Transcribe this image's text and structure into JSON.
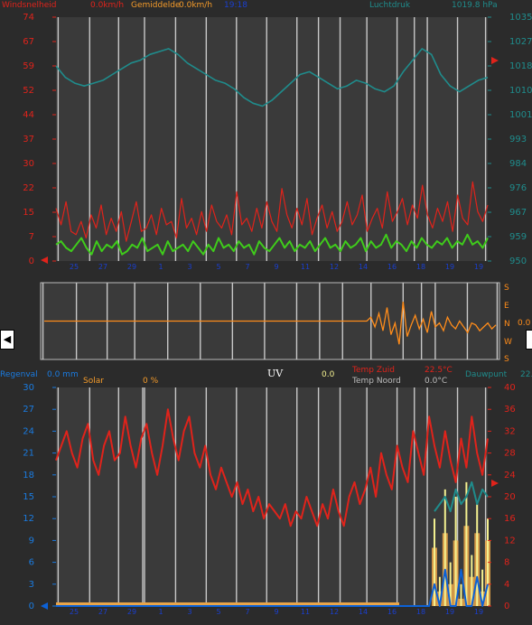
{
  "header": {
    "wind_label": "Windsnelheid",
    "wind_value": "0.0km/h",
    "avg_label": "Gemiddelde",
    "avg_value": "0.0km/h",
    "time": "19:18",
    "pressure_label": "Luchtdruk",
    "pressure_value": "1019.8 hPa"
  },
  "bottom_header": {
    "rain_label": "Regenval",
    "rain_value": "0.0 mm",
    "solar_label": "Solar",
    "solar_value": "0 %",
    "uv_label": "UV",
    "uv_value": "0.0",
    "temp_south_label": "Temp Zuid",
    "temp_south_value": "22.5°C",
    "temp_north_label": "Temp Noord",
    "temp_north_value": "0.0°C",
    "dew_label": "Dauwpunt",
    "dew_value": "22."
  },
  "dir_labels": [
    "S",
    "E",
    "N",
    "W",
    "S"
  ],
  "dir_value": "0.0",
  "colors": {
    "bg": "#2b2b2b",
    "panel": "#3a3a3a",
    "grid": "#c8c8c8",
    "wind": "#e0231b",
    "avg": "#3fcc1b",
    "pressure": "#1f8c8c",
    "direction": "#ff8c1a",
    "blue": "#0c61d6",
    "yellow": "#f4f190"
  },
  "chart_data": [
    {
      "type": "line",
      "title": "",
      "left_ticks": [
        74,
        67,
        59,
        52,
        44,
        37,
        30,
        22,
        15,
        7,
        0
      ],
      "right_ticks": [
        1035,
        1027,
        1018,
        1010,
        1001,
        993,
        984,
        976,
        967,
        959,
        950
      ],
      "ylim": [
        0,
        74
      ],
      "ylim_right": [
        950,
        1035
      ],
      "x_ticks": [
        "25",
        "27",
        "29",
        "1",
        "3",
        "5",
        "7",
        "9",
        "11",
        "12",
        "14",
        "16",
        "18",
        "19",
        "19"
      ],
      "series": [
        {
          "name": "Windsnelheid",
          "key": "wind",
          "values": [
            16,
            11,
            18,
            9,
            8,
            12,
            7,
            14,
            10,
            17,
            8,
            13,
            9,
            15,
            6,
            12,
            18,
            9,
            10,
            14,
            8,
            16,
            11,
            12,
            7,
            19,
            10,
            13,
            8,
            15,
            9,
            17,
            12,
            10,
            14,
            8,
            21,
            11,
            13,
            9,
            16,
            10,
            18,
            12,
            9,
            22,
            14,
            10,
            16,
            11,
            19,
            8,
            13,
            17,
            10,
            15,
            9,
            12,
            18,
            11,
            14,
            20,
            9,
            13,
            16,
            10,
            21,
            12,
            15,
            19,
            11,
            17,
            13,
            23,
            14,
            10,
            16,
            12,
            18,
            9,
            20,
            13,
            11,
            24,
            15,
            12,
            17
          ]
        },
        {
          "name": "Gemiddelde",
          "key": "avg",
          "values": [
            5,
            6,
            4,
            3,
            5,
            7,
            4,
            2,
            6,
            3,
            5,
            4,
            6,
            2,
            3,
            5,
            4,
            7,
            3,
            4,
            5,
            2,
            6,
            3,
            4,
            5,
            3,
            6,
            4,
            2,
            5,
            3,
            7,
            4,
            5,
            3,
            6,
            4,
            5,
            2,
            6,
            4,
            3,
            5,
            7,
            4,
            6,
            3,
            5,
            4,
            6,
            3,
            5,
            7,
            4,
            5,
            3,
            6,
            4,
            5,
            7,
            3,
            6,
            4,
            5,
            8,
            4,
            6,
            5,
            3,
            6,
            4,
            7,
            5,
            4,
            6,
            5,
            7,
            4,
            6,
            5,
            8,
            5,
            6,
            4,
            7
          ]
        },
        {
          "name": "Luchtdruk",
          "key": "pressure",
          "values": [
            1018,
            1014,
            1012,
            1011,
            1012,
            1013,
            1015,
            1017,
            1019,
            1020,
            1022,
            1023,
            1024,
            1022,
            1019,
            1017,
            1015,
            1013,
            1012,
            1010,
            1007,
            1005,
            1004,
            1006,
            1009,
            1012,
            1015,
            1016,
            1014,
            1012,
            1010,
            1011,
            1013,
            1012,
            1010,
            1009,
            1011,
            1016,
            1020,
            1024,
            1022,
            1015,
            1011,
            1009,
            1011,
            1013,
            1014
          ]
        }
      ]
    },
    {
      "type": "line",
      "title": "",
      "series": [
        {
          "name": "Windrichting",
          "key": "direction",
          "values": [
            180,
            180,
            180,
            180,
            180,
            180,
            180,
            180,
            180,
            180,
            180,
            180,
            180,
            180,
            180,
            180,
            180,
            180,
            180,
            180,
            180,
            180,
            180,
            180,
            180,
            180,
            180,
            180,
            180,
            180,
            180,
            180,
            180,
            180,
            180,
            180,
            180,
            180,
            180,
            180,
            180,
            180,
            180,
            180,
            180,
            180,
            180,
            180,
            180,
            180,
            180,
            180,
            180,
            180,
            180,
            180,
            180,
            180,
            180,
            180,
            180,
            180,
            180,
            180,
            180,
            180,
            180,
            180,
            180,
            180,
            180,
            180,
            180,
            180,
            180,
            180,
            180,
            180,
            180,
            180,
            180,
            160,
            210,
            140,
            230,
            110,
            250,
            190,
            300,
            80,
            260,
            200,
            150,
            220,
            170,
            240,
            130,
            210,
            190,
            230,
            160,
            200,
            220,
            180,
            210,
            240,
            190,
            200,
            230,
            210,
            190,
            220,
            200
          ]
        }
      ]
    },
    {
      "type": "line",
      "title": "",
      "left_ticks": [
        30,
        27,
        24,
        21,
        18,
        15,
        12,
        9,
        6,
        3,
        0
      ],
      "right_ticks": [
        40,
        36,
        32,
        28,
        24,
        20,
        16,
        12,
        8,
        4,
        0
      ],
      "ylim": [
        0,
        30
      ],
      "ylim_right": [
        0,
        40
      ],
      "x_ticks": [
        "25",
        "27",
        "29",
        "1",
        "3",
        "5",
        "7",
        "9",
        "11",
        "12",
        "14",
        "16",
        "18",
        "19",
        "19"
      ],
      "series": [
        {
          "name": "Temp Zuid",
          "key": "temp",
          "values": [
            20,
            22,
            24,
            21,
            19,
            23,
            25,
            20,
            18,
            22,
            24,
            20,
            21,
            26,
            22,
            19,
            23,
            25,
            21,
            18,
            22,
            27,
            23,
            20,
            24,
            26,
            21,
            19,
            22,
            18,
            16,
            19,
            17,
            15,
            17,
            14,
            16,
            13,
            15,
            12,
            14,
            13,
            12,
            14,
            11,
            13,
            12,
            15,
            13,
            11,
            14,
            12,
            16,
            13,
            11,
            15,
            17,
            14,
            16,
            19,
            15,
            21,
            18,
            16,
            22,
            19,
            17,
            24,
            21,
            18,
            26,
            22,
            19,
            24,
            20,
            17,
            23,
            19,
            26,
            21,
            18,
            23
          ]
        },
        {
          "name": "Dauwpunt",
          "key": "dew",
          "values": [
            null,
            null,
            null,
            null,
            null,
            null,
            null,
            null,
            null,
            null,
            null,
            null,
            null,
            null,
            null,
            null,
            null,
            null,
            null,
            null,
            null,
            null,
            null,
            null,
            null,
            null,
            null,
            null,
            null,
            null,
            null,
            null,
            null,
            null,
            null,
            null,
            null,
            null,
            null,
            null,
            null,
            null,
            null,
            null,
            null,
            null,
            null,
            null,
            null,
            null,
            null,
            null,
            null,
            null,
            null,
            null,
            null,
            null,
            null,
            null,
            null,
            null,
            null,
            null,
            null,
            null,
            null,
            null,
            null,
            null,
            null,
            13,
            14,
            15,
            13,
            16,
            14,
            15,
            17,
            14,
            16,
            15
          ]
        },
        {
          "name": "Solar",
          "key": "solar",
          "values": [
            0,
            0,
            0,
            0,
            0,
            0,
            0,
            0,
            0,
            0,
            0,
            0,
            0,
            0,
            0,
            0,
            0,
            0,
            0,
            0,
            0,
            0,
            0,
            0,
            0,
            0,
            0,
            0,
            0,
            0,
            0,
            0,
            0,
            0,
            0,
            0,
            0,
            0,
            0,
            0,
            0,
            0,
            0,
            0,
            0,
            0,
            0,
            0,
            0,
            0,
            0,
            0,
            0,
            0,
            0,
            0,
            0,
            0,
            0,
            0,
            0,
            0,
            0,
            0,
            0,
            0,
            0,
            0,
            0,
            0,
            0,
            8,
            2,
            10,
            3,
            9,
            1,
            11,
            4,
            10,
            2,
            9
          ]
        },
        {
          "name": "UV",
          "key": "uv",
          "values": [
            0,
            0,
            0,
            0,
            0,
            0,
            0,
            0,
            0,
            0,
            0,
            0,
            0,
            0,
            0,
            0,
            0,
            0,
            0,
            0,
            0,
            0,
            0,
            0,
            0,
            0,
            0,
            0,
            0,
            0,
            0,
            0,
            0,
            0,
            0,
            0,
            0,
            0,
            0,
            0,
            0,
            0,
            0,
            0,
            0,
            0,
            0,
            0,
            0,
            0,
            0,
            0,
            0,
            0,
            0,
            0,
            0,
            0,
            0,
            0,
            0,
            0,
            0,
            0,
            0,
            0,
            0,
            0,
            0,
            0,
            0,
            12,
            4,
            16,
            6,
            15,
            3,
            17,
            7,
            14,
            5,
            12
          ]
        },
        {
          "name": "Regenval",
          "key": "rain",
          "values": [
            0,
            0,
            0,
            0,
            0,
            0,
            0,
            0,
            0,
            0,
            0,
            0,
            0,
            0,
            0,
            0,
            0,
            0,
            0,
            0,
            0,
            0,
            0,
            0,
            0,
            0,
            0,
            0,
            0,
            0,
            0,
            0,
            0,
            0,
            0,
            0,
            0,
            0,
            0,
            0,
            0,
            0,
            0,
            0,
            0,
            0,
            0,
            0,
            0,
            0,
            0,
            0,
            0,
            0,
            0,
            0,
            0,
            0,
            0,
            0,
            0,
            0,
            0,
            0,
            0,
            0,
            0,
            0,
            0,
            0,
            0,
            3,
            0,
            5,
            0,
            0,
            5,
            0,
            0,
            4,
            0,
            3
          ]
        }
      ]
    }
  ]
}
